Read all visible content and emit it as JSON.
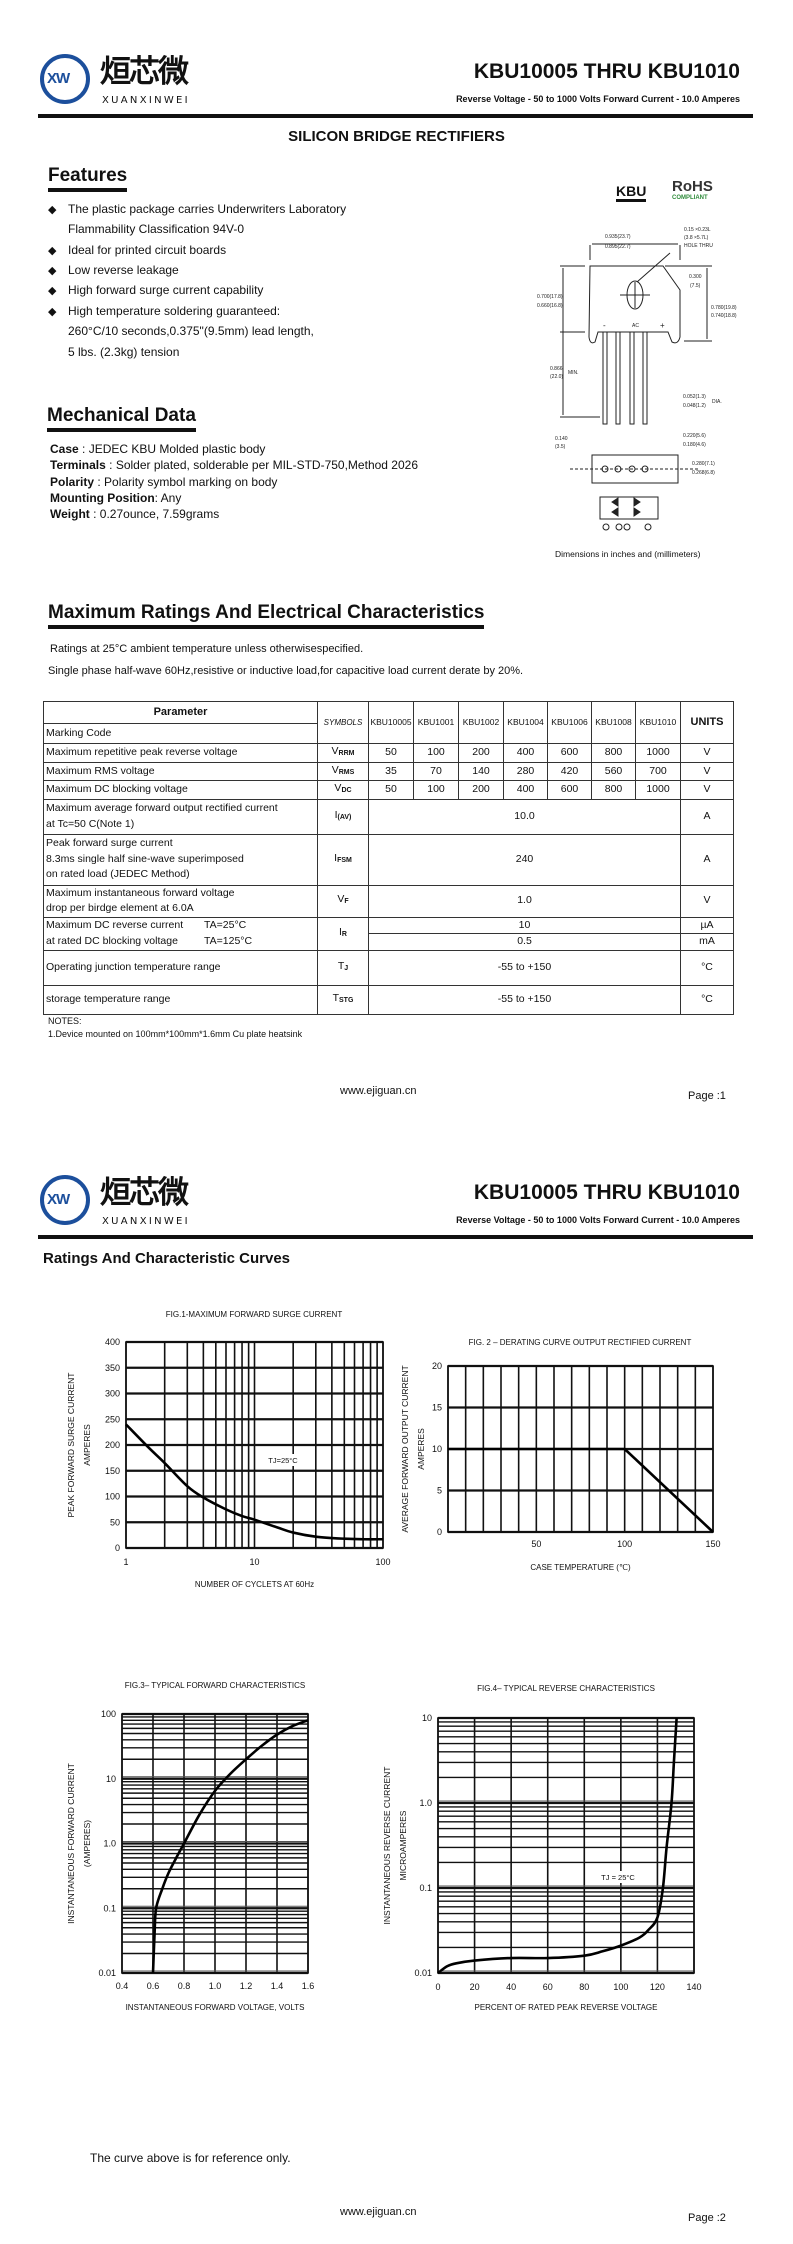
{
  "header": {
    "logo_mark": "XW",
    "logo_cn": "烜芯微",
    "logo_en": "XUANXINWEI",
    "title": "KBU10005 THRU KBU1010",
    "subtitle": "Reverse Voltage - 50 to 1000 Volts   Forward Current - 10.0 Amperes",
    "logo_color": "#1c4f9c"
  },
  "page1": {
    "heading": "SILICON BRIDGE RECTIFIERS",
    "features": {
      "title": "Features",
      "items": [
        [
          "The plastic package carries Underwriters Laboratory",
          "Flammability Classification 94V-0"
        ],
        [
          "Ideal for printed circuit boards"
        ],
        [
          "Low reverse leakage"
        ],
        [
          "High forward surge current capability"
        ],
        [
          "High temperature soldering guaranteed:",
          "260°C/10 seconds,0.375\"(9.5mm) lead length,",
          "5 lbs. (2.3kg) tension"
        ]
      ]
    },
    "mechanical": {
      "title": "Mechanical Data",
      "items": [
        {
          "label": "Case",
          "text": " : JEDEC KBU Molded plastic body"
        },
        {
          "label": "Terminals",
          "text": " : Solder plated, solderable per MIL-STD-750,Method 2026"
        },
        {
          "label": "Polarity",
          "text": " : Polarity symbol  marking on body"
        },
        {
          "label": "Mounting Position",
          "text": ": Any"
        },
        {
          "label": "Weight",
          "text": " : 0.27ounce,  7.59grams"
        }
      ]
    },
    "package": {
      "name": "KBU",
      "rohs": "RoHS",
      "rohs_sub": "COMPLIANT",
      "rohs_color": "#2e8b3a",
      "dims": [
        "0.935(23.7)",
        "0.895(22.7)",
        "0.15 ×0.23L",
        "(3.8 ×5.7L)",
        "HOLE THRU",
        "0.300",
        "(7.5)",
        "0.700(17.8)",
        "0.660(16.8)",
        "0.780(19.8)",
        "0.740(18.8)",
        "0.866",
        "(22.0)",
        "MIN.",
        "0.052(1.3)",
        "0.048(1.2)",
        "DIA.",
        "0.140",
        "(3.5)",
        "0.220(5.6)",
        "0.180(4.6)",
        "0.280(7.1)",
        "0.268(6.8)",
        "AC",
        "-",
        "+"
      ],
      "caption": "Dimensions in inches and (millimeters)"
    },
    "ratings": {
      "title": "Maximum Ratings And Electrical Characteristics",
      "line1": "Ratings at 25°C ambient temperature unless otherwisespecified.",
      "line2": "Single phase half-wave 60Hz,resistive or inductive load,for capacitive load current derate by 20%."
    },
    "table": {
      "parameter": "Parameter",
      "marking_code": "Marking Code",
      "symbols": "SYMBOLS",
      "units": "UNITS",
      "models": [
        "KBU10005",
        "KBU1001",
        "KBU1002",
        "KBU1004",
        "KBU1006",
        "KBU1008",
        "KBU1010"
      ],
      "vrrm": {
        "param": "Maximum repetitive peak reverse voltage",
        "sym": "V",
        "sub": "RRM",
        "values": [
          "50",
          "100",
          "200",
          "400",
          "600",
          "800",
          "1000"
        ],
        "unit": "V"
      },
      "vrms": {
        "param": "Maximum RMS voltage",
        "sym": "V",
        "sub": "RMS",
        "values": [
          "35",
          "70",
          "140",
          "280",
          "420",
          "560",
          "700"
        ],
        "unit": "V"
      },
      "vdc": {
        "param": "Maximum DC blocking voltage",
        "sym": "V",
        "sub": "DC",
        "values": [
          "50",
          "100",
          "200",
          "400",
          "600",
          "800",
          "1000"
        ],
        "unit": "V"
      },
      "iav": {
        "param1": "Maximum average forward output rectified current",
        "param2": "at Tc=50 C(Note 1)",
        "sym": "I",
        "sub": "(AV)",
        "value": "10.0",
        "unit": "A"
      },
      "ifsm": {
        "param1": "Peak forward surge current",
        "param2": "8.3ms single half sine-wave superimposed",
        "param3": "on rated load (JEDEC Method)",
        "sym": "I",
        "sub": "FSM",
        "value": "240",
        "unit": "A"
      },
      "vf": {
        "param1": "Maximum instantaneous forward voltage",
        "param2": "drop per birdge element at 6.0A",
        "sym": "V",
        "sub": "F",
        "value": "1.0",
        "unit": "V"
      },
      "ir": {
        "param1": "Maximum DC reverse current",
        "cond1": "TA=25°C",
        "param2": "at rated DC blocking voltage",
        "cond2": "TA=125°C",
        "sym": "I",
        "sub": "R",
        "value1": "10",
        "unit1": "µA",
        "value2": "0.5",
        "unit2": "mA"
      },
      "tj": {
        "param": "Operating junction temperature range",
        "sym": "T",
        "sub": "J",
        "value": "-55 to +150",
        "unit": "°C"
      },
      "tstg": {
        "param": "storage temperature range",
        "sym": "T",
        "sub": "STG",
        "value": "-55 to +150",
        "unit": "°C"
      }
    },
    "notes_title": "NOTES:",
    "note1": "1.Device mounted on 100mm*100mm*1.6mm Cu plate heatsink",
    "footer_url": "www.ejiguan.cn",
    "page_label": "Page :1"
  },
  "page2": {
    "heading": "Ratings And Characteristic Curves",
    "reference_note": "The curve above is for reference only.",
    "footer_url": "www.ejiguan.cn",
    "page_label": "Page :2"
  },
  "chart_data": [
    {
      "type": "line",
      "title": "FIG.1-MAXIMUM FORWARD SURGE CURRENT",
      "xlabel": "NUMBER OF CYCLETS AT 60Hz",
      "ylabel": [
        "PEAK FORWARD SURGE CURRENT",
        "AMPERES"
      ],
      "x_scale": "log",
      "x_range": [
        1,
        100
      ],
      "x_ticks": [
        "1",
        "10",
        "100"
      ],
      "y_scale": "linear",
      "y_range": [
        0,
        400
      ],
      "y_ticks": [
        "0",
        "50",
        "100",
        "150",
        "200",
        "250",
        "300",
        "350",
        "400"
      ],
      "grid": true,
      "annotation": "TJ=25°C",
      "series": [
        {
          "x": [
            1,
            1.5,
            2,
            3,
            4,
            6,
            8,
            10,
            15,
            20,
            30,
            50,
            70,
            100
          ],
          "y": [
            240,
            195,
            165,
            120,
            98,
            75,
            62,
            55,
            40,
            30,
            22,
            18,
            17,
            17
          ]
        }
      ]
    },
    {
      "type": "line",
      "title": "FIG. 2 – DERATING CURVE OUTPUT RECTIFIED CURRENT",
      "xlabel": "CASE TEMPERATURE (℃)",
      "ylabel": [
        "AVERAGE FORWARD OUTPUT  CURRENT",
        "AMPERES"
      ],
      "x_scale": "linear",
      "x_range": [
        0,
        150
      ],
      "x_ticks": [
        "50",
        "100",
        "150"
      ],
      "y_scale": "linear",
      "y_range": [
        0,
        20
      ],
      "y_ticks": [
        "0",
        "5",
        "10",
        "15",
        "20"
      ],
      "grid": true,
      "series": [
        {
          "x": [
            0,
            100,
            150
          ],
          "y": [
            10,
            10,
            0
          ]
        }
      ]
    },
    {
      "type": "line",
      "title": "FIG.3– TYPICAL FORWARD CHARACTERISTICS",
      "xlabel": "INSTANTANEOUS FORWARD VOLTAGE, VOLTS",
      "ylabel": [
        "INSTANTANEOUS FORWARD CURRENT",
        "(AMPERES)"
      ],
      "x_scale": "linear",
      "x_range": [
        0.4,
        1.6
      ],
      "x_ticks": [
        "0.4",
        "0.6",
        "0.8",
        "1.0",
        "1.2",
        "1.4",
        "1.6"
      ],
      "y_scale": "log",
      "y_range": [
        0.01,
        100
      ],
      "y_ticks": [
        "0.01",
        "0.1",
        "1.0",
        "10",
        "100"
      ],
      "grid": true,
      "series": [
        {
          "x": [
            0.6,
            0.61,
            0.62,
            0.66,
            0.7,
            0.75,
            0.8,
            0.9,
            1.0,
            1.1,
            1.2,
            1.3,
            1.4,
            1.5,
            1.6
          ],
          "y": [
            0.01,
            0.04,
            0.1,
            0.2,
            0.35,
            0.6,
            1.0,
            2.8,
            6.5,
            12,
            20,
            32,
            48,
            65,
            80
          ]
        }
      ]
    },
    {
      "type": "line",
      "title": "FIG.4– TYPICAL REVERSE CHARACTERISTICS",
      "xlabel": "PERCENT OF RATED PEAK REVERSE VOLTAGE",
      "ylabel": [
        "INSTANTANEOUS REVERSE CURRENT",
        "MICROAMPERES"
      ],
      "x_scale": "linear",
      "x_range": [
        0,
        140
      ],
      "x_ticks": [
        "0",
        "20",
        "40",
        "60",
        "80",
        "100",
        "120",
        "140"
      ],
      "y_scale": "log",
      "y_range": [
        0.01,
        10
      ],
      "y_ticks": [
        "0.01",
        "0.1",
        "1.0",
        "10"
      ],
      "grid": true,
      "annotation": "TJ = 25°C",
      "series": [
        {
          "x": [
            0,
            5,
            10,
            20,
            40,
            60,
            80,
            90,
            100,
            110,
            115,
            120,
            123,
            125,
            127.7,
            129,
            130.5
          ],
          "y": [
            0.01,
            0.012,
            0.013,
            0.014,
            0.015,
            0.015,
            0.016,
            0.018,
            0.021,
            0.026,
            0.032,
            0.045,
            0.1,
            0.3,
            1,
            3,
            10
          ]
        }
      ]
    }
  ]
}
